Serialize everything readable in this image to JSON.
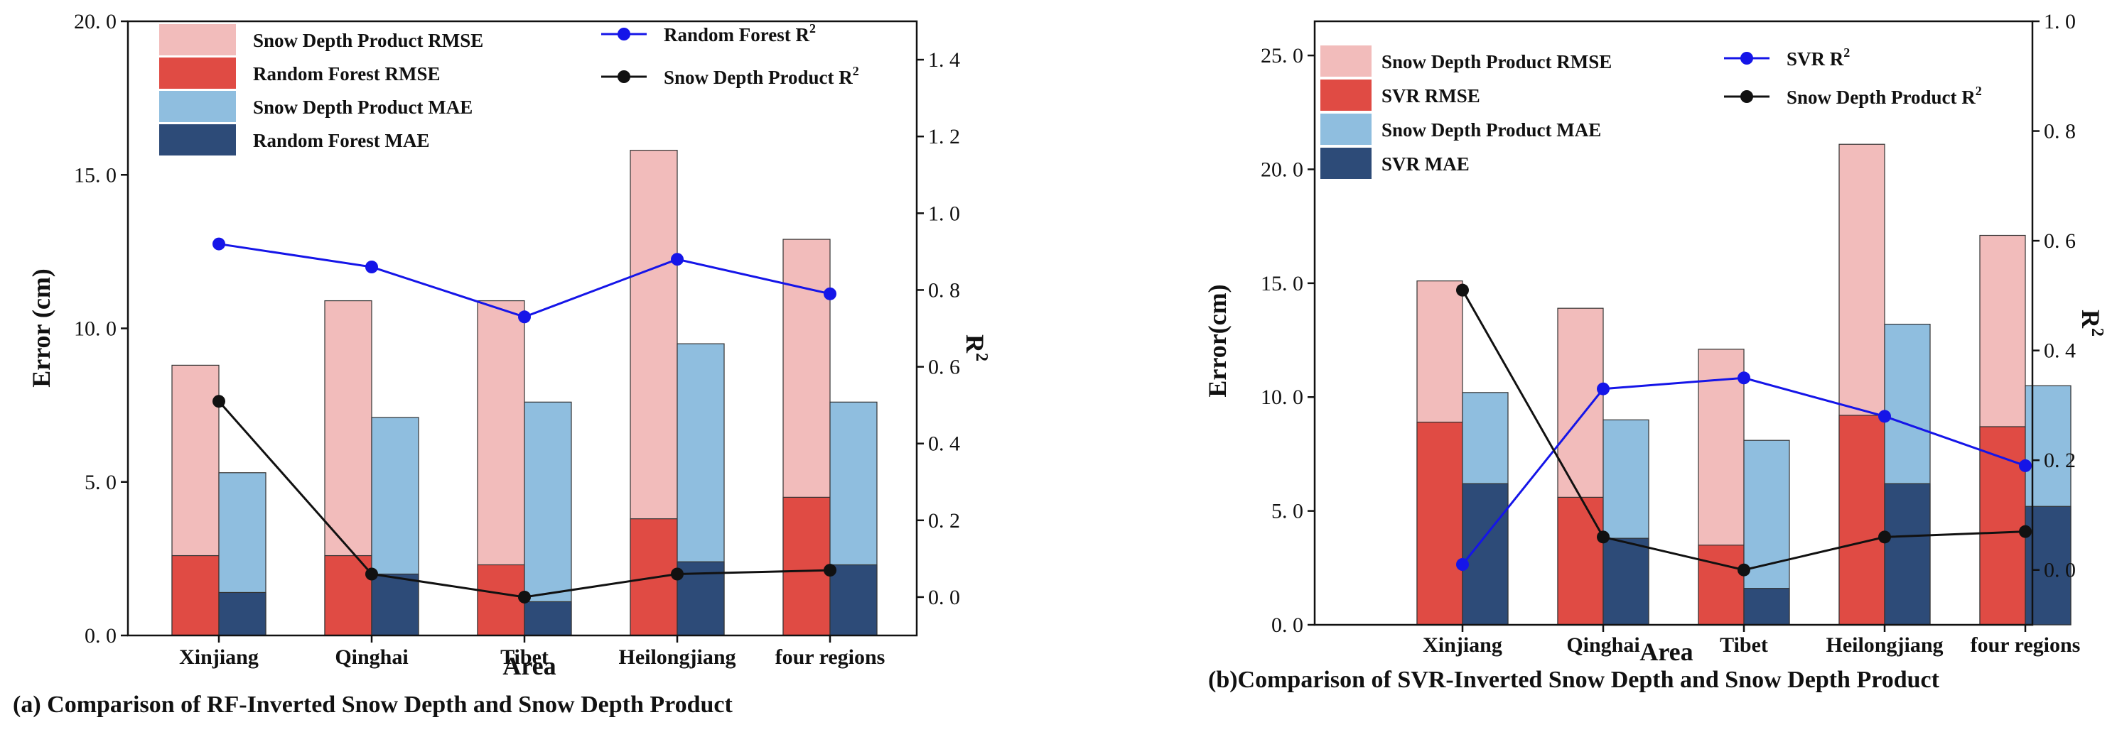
{
  "colors": {
    "product_rmse": "#f2bcbb",
    "model_rmse": "#e04b44",
    "product_mae": "#8fbedf",
    "model_mae": "#2d4b78",
    "model_r2": "#1515e8",
    "product_r2": "#111111"
  },
  "chart_data": [
    {
      "type": "bar",
      "caption": "(a) Comparison of RF-Inverted Snow Depth and Snow Depth Product",
      "xlabel": "Area",
      "ylabel": "Error (cm)",
      "y2label": "R",
      "y2label_sup": "2",
      "ylim": [
        0,
        20
      ],
      "yticks": [
        "0. 0",
        "5. 0",
        "10. 0",
        "15. 0",
        "20. 0"
      ],
      "ytick_values": [
        0,
        5,
        10,
        15,
        20
      ],
      "y2lim": [
        -0.1,
        1.5
      ],
      "y2ticks": [
        "0. 0",
        "0. 2",
        "0. 4",
        "0. 6",
        "0. 8",
        "1. 0",
        "1. 2",
        "1. 4"
      ],
      "y2tick_values": [
        0,
        0.2,
        0.4,
        0.6,
        0.8,
        1.0,
        1.2,
        1.4
      ],
      "categories": [
        "Xinjiang",
        "Qinghai",
        "Tibet",
        "Heilongjiang",
        "four regions"
      ],
      "series": [
        {
          "name": "Snow Depth Product RMSE",
          "kind": "bar",
          "slot": "left",
          "color_key": "product_rmse",
          "values": [
            8.8,
            10.9,
            10.9,
            15.8,
            12.9
          ]
        },
        {
          "name": "Random Forest RMSE",
          "kind": "bar",
          "slot": "left",
          "color_key": "model_rmse",
          "values": [
            2.6,
            2.6,
            2.3,
            3.8,
            4.5
          ]
        },
        {
          "name": "Snow Depth Product MAE",
          "kind": "bar",
          "slot": "right",
          "color_key": "product_mae",
          "values": [
            5.3,
            7.1,
            7.6,
            9.5,
            7.6
          ]
        },
        {
          "name": "Random Forest MAE",
          "kind": "bar",
          "slot": "right",
          "color_key": "model_mae",
          "values": [
            1.4,
            2.0,
            1.1,
            2.4,
            2.3
          ]
        },
        {
          "name": "Random Forest  R",
          "name_sup": "2",
          "kind": "line",
          "axis": "y2",
          "color_key": "model_r2",
          "values": [
            0.92,
            0.86,
            0.73,
            0.88,
            0.79
          ]
        },
        {
          "name": "Snow Depth Product  R",
          "name_sup": "2",
          "kind": "line",
          "axis": "y2",
          "color_key": "product_r2",
          "values": [
            0.51,
            0.06,
            0.0,
            0.06,
            0.07
          ]
        }
      ]
    },
    {
      "type": "bar",
      "caption": "(b)Comparison of SVR-Inverted Snow Depth and Snow Depth Product",
      "xlabel": "Area",
      "ylabel": "Error(cm)",
      "y2label": "R",
      "y2label_sup": "2",
      "ylim": [
        0,
        26.5
      ],
      "yticks": [
        "0. 0",
        "5. 0",
        "10. 0",
        "15. 0",
        "20. 0",
        "25. 0"
      ],
      "ytick_values": [
        0,
        5,
        10,
        15,
        20,
        25
      ],
      "y2lim": [
        -0.1,
        1.0
      ],
      "y2ticks": [
        "0. 0",
        "0. 2",
        "0. 4",
        "0. 6",
        "0. 8",
        "1. 0"
      ],
      "y2tick_values": [
        0,
        0.2,
        0.4,
        0.6,
        0.8,
        1.0
      ],
      "categories": [
        "Xinjiang",
        "Qinghai",
        "Tibet",
        "Heilongjiang",
        "four regions"
      ],
      "series": [
        {
          "name": "Snow Depth Product RMSE",
          "kind": "bar",
          "slot": "left",
          "color_key": "product_rmse",
          "values": [
            15.1,
            13.9,
            12.1,
            21.1,
            17.1
          ]
        },
        {
          "name": "SVR  RMSE",
          "kind": "bar",
          "slot": "left",
          "color_key": "model_rmse",
          "values": [
            8.9,
            5.6,
            3.5,
            9.2,
            8.7
          ]
        },
        {
          "name": "Snow Depth Product MAE",
          "kind": "bar",
          "slot": "right",
          "color_key": "product_mae",
          "values": [
            10.2,
            9.0,
            8.1,
            13.2,
            10.5
          ]
        },
        {
          "name": "SVR  MAE",
          "kind": "bar",
          "slot": "right",
          "color_key": "model_mae",
          "values": [
            6.2,
            3.8,
            1.6,
            6.2,
            5.2
          ]
        },
        {
          "name": "SVR  R",
          "name_sup": "2",
          "kind": "line",
          "axis": "y2",
          "color_key": "model_r2",
          "values": [
            0.01,
            0.33,
            0.35,
            0.28,
            0.19
          ]
        },
        {
          "name": "Snow Depth Product  R",
          "name_sup": "2",
          "kind": "line",
          "axis": "y2",
          "color_key": "product_r2",
          "values": [
            0.51,
            0.06,
            0.0,
            0.06,
            0.07
          ]
        }
      ]
    }
  ]
}
